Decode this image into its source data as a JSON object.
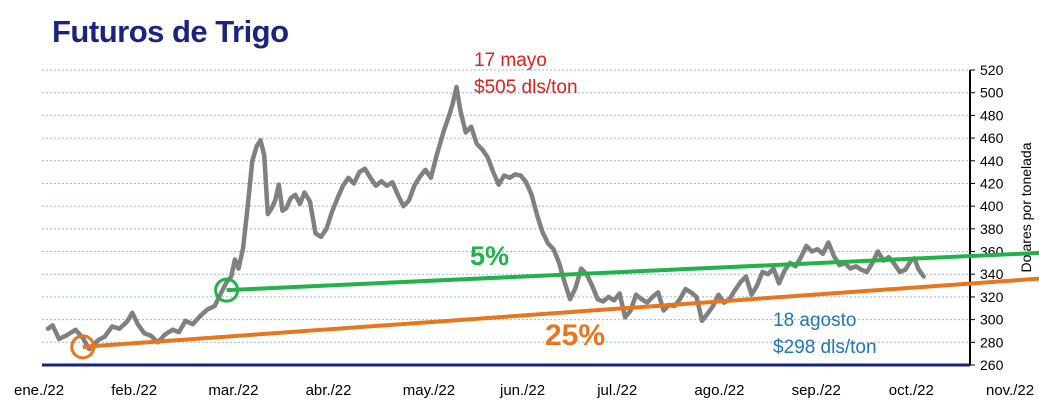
{
  "chart_data": {
    "type": "line",
    "title": "Futuros de Trigo",
    "ylabel": "Dolares por tonelada",
    "ylim": [
      260,
      520
    ],
    "yticks": [
      260,
      280,
      300,
      320,
      340,
      360,
      380,
      400,
      420,
      440,
      460,
      480,
      500,
      520
    ],
    "x_categories": [
      "ene./22",
      "feb./22",
      "mar./22",
      "abr./22",
      "may./22",
      "jun./22",
      "jul./22",
      "ago./22",
      "sep./22",
      "oct./22",
      "nov./22"
    ],
    "grid": true,
    "series": [
      {
        "color": "#808080",
        "points": [
          [
            0.0,
            292
          ],
          [
            0.05,
            295
          ],
          [
            0.12,
            283
          ],
          [
            0.2,
            286
          ],
          [
            0.3,
            291
          ],
          [
            0.38,
            284
          ],
          [
            0.45,
            274
          ],
          [
            0.55,
            282
          ],
          [
            0.62,
            285
          ],
          [
            0.7,
            294
          ],
          [
            0.78,
            292
          ],
          [
            0.86,
            298
          ],
          [
            0.92,
            306
          ],
          [
            0.98,
            296
          ],
          [
            1.05,
            288
          ],
          [
            1.12,
            286
          ],
          [
            1.2,
            280
          ],
          [
            1.28,
            287
          ],
          [
            1.36,
            291
          ],
          [
            1.43,
            289
          ],
          [
            1.5,
            299
          ],
          [
            1.58,
            296
          ],
          [
            1.66,
            303
          ],
          [
            1.74,
            309
          ],
          [
            1.82,
            312
          ],
          [
            1.88,
            322
          ],
          [
            1.95,
            333
          ],
          [
            2.0,
            338
          ],
          [
            2.04,
            353
          ],
          [
            2.08,
            345
          ],
          [
            2.13,
            363
          ],
          [
            2.18,
            400
          ],
          [
            2.23,
            440
          ],
          [
            2.28,
            453
          ],
          [
            2.32,
            458
          ],
          [
            2.36,
            445
          ],
          [
            2.4,
            393
          ],
          [
            2.44,
            398
          ],
          [
            2.48,
            405
          ],
          [
            2.52,
            419
          ],
          [
            2.56,
            396
          ],
          [
            2.6,
            398
          ],
          [
            2.65,
            407
          ],
          [
            2.7,
            410
          ],
          [
            2.75,
            402
          ],
          [
            2.8,
            412
          ],
          [
            2.86,
            404
          ],
          [
            2.92,
            376
          ],
          [
            2.98,
            373
          ],
          [
            3.04,
            380
          ],
          [
            3.1,
            395
          ],
          [
            3.16,
            407
          ],
          [
            3.22,
            418
          ],
          [
            3.28,
            425
          ],
          [
            3.34,
            420
          ],
          [
            3.4,
            430
          ],
          [
            3.46,
            433
          ],
          [
            3.52,
            425
          ],
          [
            3.58,
            418
          ],
          [
            3.64,
            422
          ],
          [
            3.7,
            418
          ],
          [
            3.76,
            421
          ],
          [
            3.82,
            410
          ],
          [
            3.88,
            400
          ],
          [
            3.94,
            405
          ],
          [
            4.0,
            418
          ],
          [
            4.06,
            426
          ],
          [
            4.12,
            432
          ],
          [
            4.18,
            425
          ],
          [
            4.24,
            444
          ],
          [
            4.32,
            466
          ],
          [
            4.38,
            480
          ],
          [
            4.42,
            491
          ],
          [
            4.46,
            505
          ],
          [
            4.5,
            485
          ],
          [
            4.56,
            465
          ],
          [
            4.62,
            470
          ],
          [
            4.68,
            455
          ],
          [
            4.74,
            450
          ],
          [
            4.8,
            443
          ],
          [
            4.86,
            430
          ],
          [
            4.92,
            419
          ],
          [
            4.98,
            427
          ],
          [
            5.04,
            425
          ],
          [
            5.1,
            428
          ],
          [
            5.16,
            427
          ],
          [
            5.22,
            421
          ],
          [
            5.28,
            410
          ],
          [
            5.34,
            392
          ],
          [
            5.4,
            377
          ],
          [
            5.46,
            367
          ],
          [
            5.52,
            362
          ],
          [
            5.58,
            350
          ],
          [
            5.64,
            333
          ],
          [
            5.7,
            318
          ],
          [
            5.76,
            328
          ],
          [
            5.82,
            345
          ],
          [
            5.88,
            340
          ],
          [
            5.94,
            330
          ],
          [
            6.0,
            318
          ],
          [
            6.06,
            316
          ],
          [
            6.12,
            320
          ],
          [
            6.18,
            317
          ],
          [
            6.24,
            323
          ],
          [
            6.3,
            302
          ],
          [
            6.36,
            308
          ],
          [
            6.42,
            322
          ],
          [
            6.48,
            318
          ],
          [
            6.54,
            315
          ],
          [
            6.6,
            320
          ],
          [
            6.66,
            324
          ],
          [
            6.72,
            308
          ],
          [
            6.78,
            313
          ],
          [
            6.84,
            312
          ],
          [
            6.9,
            318
          ],
          [
            6.96,
            327
          ],
          [
            7.02,
            324
          ],
          [
            7.08,
            320
          ],
          [
            7.14,
            299
          ],
          [
            7.2,
            305
          ],
          [
            7.26,
            312
          ],
          [
            7.32,
            322
          ],
          [
            7.38,
            315
          ],
          [
            7.44,
            318
          ],
          [
            7.5,
            326
          ],
          [
            7.56,
            333
          ],
          [
            7.62,
            338
          ],
          [
            7.68,
            322
          ],
          [
            7.74,
            330
          ],
          [
            7.8,
            342
          ],
          [
            7.86,
            340
          ],
          [
            7.92,
            345
          ],
          [
            7.98,
            332
          ],
          [
            8.04,
            343
          ],
          [
            8.1,
            350
          ],
          [
            8.16,
            347
          ],
          [
            8.22,
            355
          ],
          [
            8.28,
            365
          ],
          [
            8.34,
            360
          ],
          [
            8.4,
            362
          ],
          [
            8.46,
            358
          ],
          [
            8.52,
            368
          ],
          [
            8.58,
            356
          ],
          [
            8.64,
            348
          ],
          [
            8.7,
            350
          ],
          [
            8.76,
            345
          ],
          [
            8.82,
            347
          ],
          [
            8.88,
            344
          ],
          [
            8.94,
            342
          ],
          [
            9.0,
            350
          ],
          [
            9.06,
            360
          ],
          [
            9.12,
            352
          ],
          [
            9.18,
            355
          ],
          [
            9.24,
            349
          ],
          [
            9.3,
            342
          ],
          [
            9.36,
            344
          ],
          [
            9.42,
            352
          ],
          [
            9.46,
            354
          ],
          [
            9.5,
            345
          ],
          [
            9.56,
            338
          ]
        ]
      }
    ],
    "trend_lines": [
      {
        "color": "#21b24b",
        "from": [
          1.95,
          326
        ],
        "to": [
          11.15,
          360
        ],
        "label": "5%"
      },
      {
        "color": "#e8761e",
        "from": [
          0.38,
          276
        ],
        "to": [
          11.15,
          338
        ],
        "label": "25%"
      }
    ],
    "markers": [
      {
        "color": "#e8761e",
        "at": [
          0.38,
          276
        ]
      },
      {
        "color": "#21b24b",
        "at": [
          1.95,
          326
        ]
      }
    ],
    "annotations": [
      {
        "color": "#e02020",
        "lines": [
          "17 mayo",
          "$505 dls/ton"
        ]
      },
      {
        "color": "#1f77b4",
        "lines": [
          "18 agosto",
          "$298 dls/ton"
        ]
      }
    ]
  }
}
